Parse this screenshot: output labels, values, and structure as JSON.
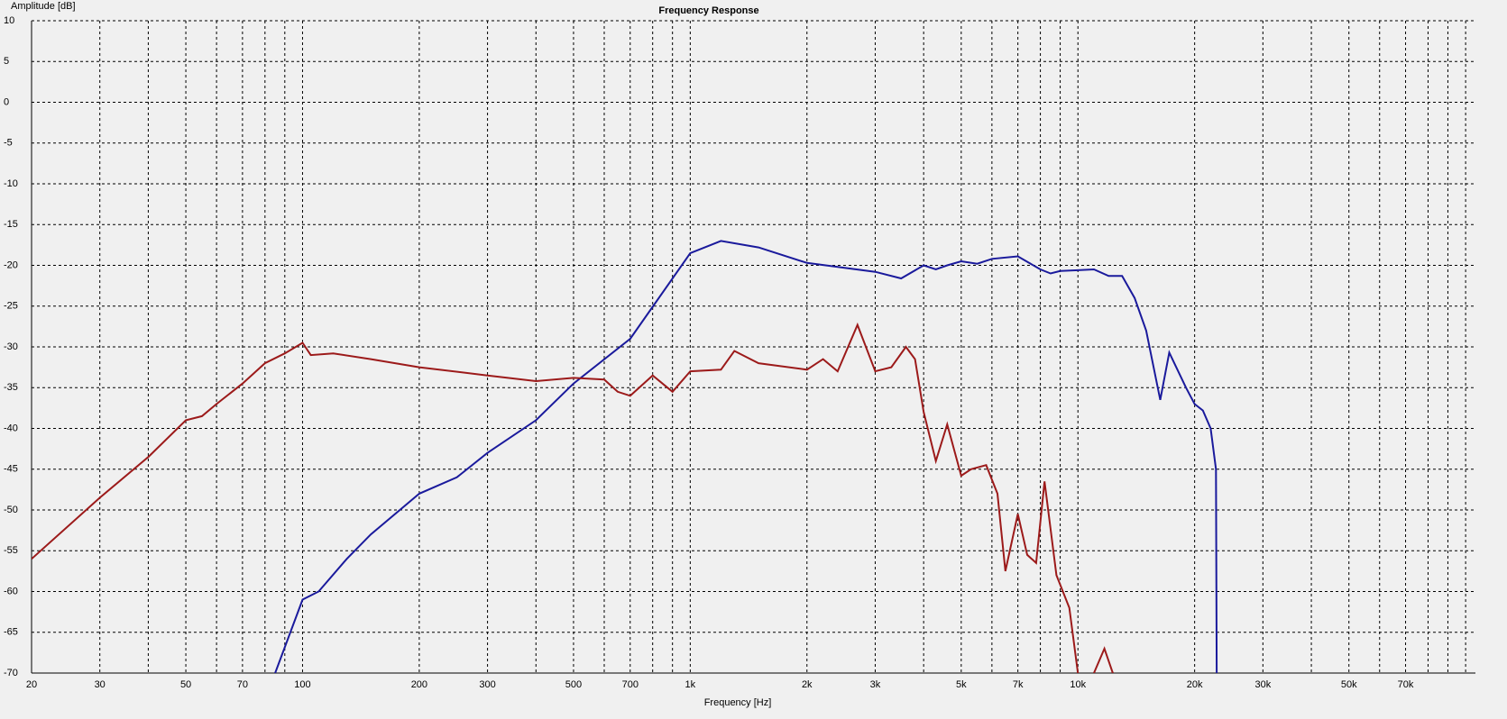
{
  "chart_data": {
    "type": "line",
    "title": "Frequency Response",
    "xlabel": "Frequency [Hz]",
    "ylabel": "Amplitude [dB]",
    "xscale": "log",
    "grid": true,
    "xlim": [
      20,
      106000
    ],
    "ylim": [
      -70,
      10
    ],
    "xticks": [
      20,
      30,
      50,
      70,
      100,
      200,
      300,
      500,
      700,
      {
        "value": 1000,
        "label": "1k"
      },
      {
        "value": 2000,
        "label": "2k"
      },
      {
        "value": 3000,
        "label": "3k"
      },
      {
        "value": 5000,
        "label": "5k"
      },
      {
        "value": 7000,
        "label": "7k"
      },
      {
        "value": 10000,
        "label": "10k"
      },
      {
        "value": 20000,
        "label": "20k"
      },
      {
        "value": 30000,
        "label": "30k"
      },
      {
        "value": 50000,
        "label": "50k"
      },
      {
        "value": 70000,
        "label": "70k"
      }
    ],
    "xminor": [
      40,
      60,
      80,
      90,
      400,
      600,
      800,
      900,
      4000,
      6000,
      8000,
      9000,
      40000,
      60000,
      80000,
      90000,
      100000
    ],
    "yticks": [
      10,
      5,
      0,
      -5,
      -10,
      -15,
      -20,
      -25,
      -30,
      -35,
      -40,
      -45,
      -50,
      -55,
      -60,
      -65,
      -70
    ],
    "series": [
      {
        "color": "#1a1a9c",
        "x": [
          85,
          100,
          110,
          130,
          150,
          200,
          250,
          300,
          400,
          500,
          700,
          1000,
          1200,
          1500,
          2000,
          3000,
          3500,
          4000,
          4300,
          4600,
          5000,
          5500,
          6000,
          7000,
          8000,
          8500,
          9000,
          10000,
          11000,
          12000,
          13000,
          14000,
          15000,
          16300,
          17200,
          19000,
          20000,
          21000,
          22000,
          22700,
          22800
        ],
        "values": [
          -70,
          -61,
          -60,
          -56,
          -53,
          -48,
          -46,
          -43,
          -39,
          -34.5,
          -29,
          -18.5,
          -17,
          -17.8,
          -19.7,
          -20.8,
          -21.6,
          -20,
          -20.5,
          -20,
          -19.5,
          -19.8,
          -19.2,
          -18.9,
          -20.5,
          -21,
          -20.7,
          -20.6,
          -20.5,
          -21.3,
          -21.3,
          -24,
          -28,
          -36.5,
          -30.7,
          -35,
          -37,
          -37.8,
          -40,
          -45,
          -70
        ]
      },
      {
        "color": "#9c1a1a",
        "x": [
          20,
          30,
          40,
          50,
          55,
          60,
          70,
          80,
          90,
          100,
          105,
          120,
          150,
          200,
          300,
          400,
          500,
          600,
          650,
          700,
          800,
          900,
          1000,
          1200,
          1300,
          1500,
          2000,
          2200,
          2400,
          2700,
          3000,
          3300,
          3600,
          3800,
          4000,
          4300,
          4600,
          5000,
          5300,
          5800,
          6200,
          6500,
          7000,
          7400,
          7800,
          8200,
          8800,
          9500,
          10000,
          10100,
          11000,
          11700,
          12300
        ],
        "values": [
          -56,
          -48.5,
          -43.5,
          -39,
          -38.5,
          -37,
          -34.5,
          -32,
          -30.8,
          -29.5,
          -31,
          -30.8,
          -31.5,
          -32.5,
          -33.5,
          -34.2,
          -33.8,
          -34,
          -35.5,
          -36,
          -33.5,
          -35.5,
          -33,
          -32.8,
          -30.5,
          -32,
          -32.8,
          -31.5,
          -33,
          -27.3,
          -33,
          -32.5,
          -30,
          -31.5,
          -38,
          -44,
          -39.5,
          -45.8,
          -45,
          -44.5,
          -48,
          -57.5,
          -50.5,
          -55.5,
          -56.5,
          -46.5,
          -58,
          -62,
          -70,
          null,
          -70,
          -67,
          -70
        ]
      }
    ]
  }
}
